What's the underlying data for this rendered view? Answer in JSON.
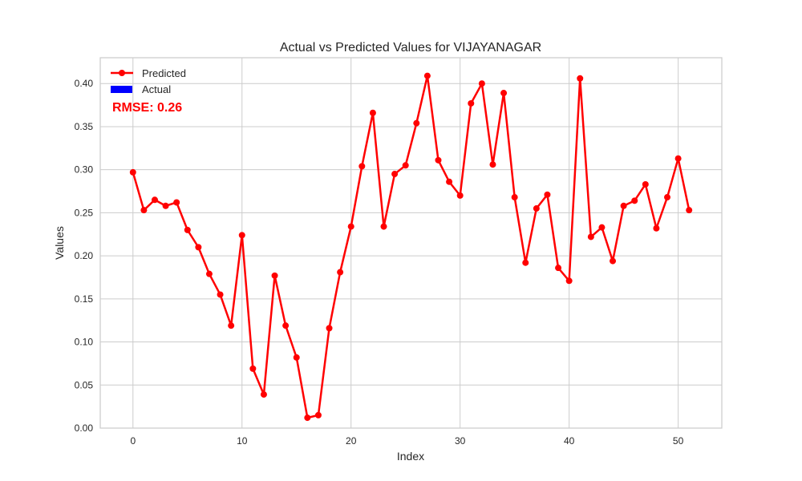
{
  "chart_data": {
    "type": "line",
    "title": "Actual vs Predicted Values for VIJAYANAGAR",
    "xlabel": "Index",
    "ylabel": "Values",
    "xlim": [
      -3,
      54
    ],
    "ylim": [
      0.0,
      0.43
    ],
    "xticks": [
      0,
      10,
      20,
      30,
      40,
      50
    ],
    "yticks": [
      0.0,
      0.05,
      0.1,
      0.15,
      0.2,
      0.25,
      0.3,
      0.35,
      0.4
    ],
    "grid": true,
    "legend_position": "top-left",
    "annotation": {
      "text": "RMSE: 0.26",
      "color": "#ff0000"
    },
    "series": [
      {
        "name": "Predicted",
        "kind": "line-markers",
        "color": "#ff0000",
        "x": [
          0,
          1,
          2,
          3,
          4,
          5,
          6,
          7,
          8,
          9,
          10,
          11,
          12,
          13,
          14,
          15,
          16,
          17,
          18,
          19,
          20,
          21,
          22,
          23,
          24,
          25,
          26,
          27,
          28,
          29,
          30,
          31,
          32,
          33,
          34,
          35,
          36,
          37,
          38,
          39,
          40,
          41,
          42,
          43,
          44,
          45,
          46,
          47,
          48,
          49,
          50,
          51
        ],
        "values": [
          0.297,
          0.253,
          0.265,
          0.258,
          0.262,
          0.23,
          0.21,
          0.179,
          0.155,
          0.119,
          0.224,
          0.069,
          0.039,
          0.177,
          0.119,
          0.082,
          0.012,
          0.015,
          0.116,
          0.181,
          0.234,
          0.304,
          0.366,
          0.234,
          0.295,
          0.305,
          0.354,
          0.409,
          0.311,
          0.286,
          0.27,
          0.377,
          0.4,
          0.306,
          0.389,
          0.268,
          0.192,
          0.255,
          0.271,
          0.186,
          0.171,
          0.406,
          0.222,
          0.233,
          0.194,
          0.258,
          0.264,
          0.283,
          0.232,
          0.268,
          0.313,
          0.253
        ]
      },
      {
        "name": "Actual",
        "kind": "bar",
        "color": "#0000ff",
        "values": []
      }
    ]
  }
}
